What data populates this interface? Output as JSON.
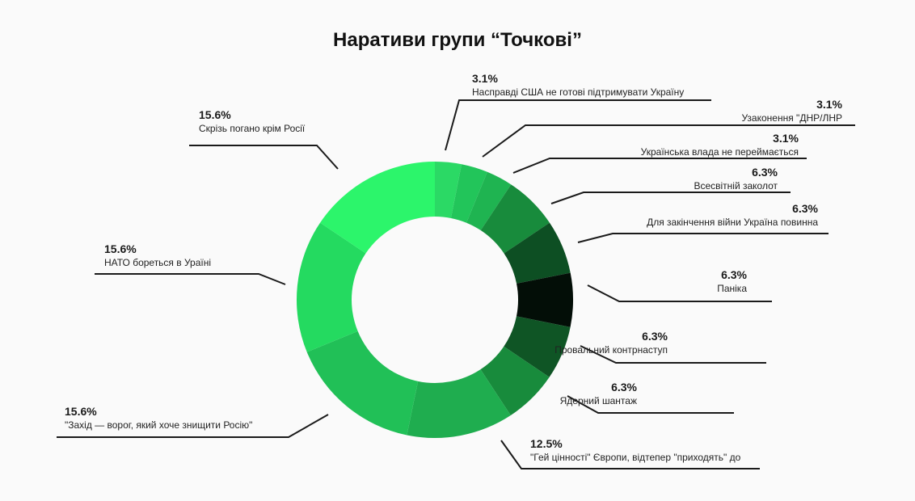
{
  "chart_data": {
    "type": "pie",
    "title": "Наративи групи “Точкові”",
    "slices": [
      {
        "label": "Насправді США не готові підтримувати Україну",
        "value": 3.1,
        "display": "3.1%",
        "color": "#2bd965"
      },
      {
        "label": "Узаконення \"ДНР/ЛНР",
        "value": 3.1,
        "display": "3.1%",
        "color": "#22c55a"
      },
      {
        "label": "Українська влада не переймається",
        "value": 3.1,
        "display": "3.1%",
        "color": "#1fb451"
      },
      {
        "label": "Всесвітній заколот",
        "value": 6.3,
        "display": "6.3%",
        "color": "#188b3c"
      },
      {
        "label": "Для закінчення війни Україна повинна",
        "value": 6.3,
        "display": "6.3%",
        "color": "#0d4f23"
      },
      {
        "label": "Паніка",
        "value": 6.3,
        "display": "6.3%",
        "color": "#030e07"
      },
      {
        "label": "Провальний контрнаступ",
        "value": 6.3,
        "display": "6.3%",
        "color": "#0f5525"
      },
      {
        "label": "Ядерний шантаж",
        "value": 6.3,
        "display": "6.3%",
        "color": "#188b3c"
      },
      {
        "label": "\"Гей цінності\" Європи, відтепер \"приходять\" до",
        "value": 12.5,
        "display": "12.5%",
        "color": "#1fad4f"
      },
      {
        "label": "\"Захід — ворог, який хоче знищити Росію\"",
        "value": 15.6,
        "display": "15.6%",
        "color": "#21c057"
      },
      {
        "label": "НАТО бореться в Ураїні",
        "value": 15.6,
        "display": "15.6%",
        "color": "#24da60"
      },
      {
        "label": "Скрізь погано крім Росії",
        "value": 15.6,
        "display": "15.6%",
        "color": "#2cf56b"
      }
    ],
    "legend": "none"
  }
}
